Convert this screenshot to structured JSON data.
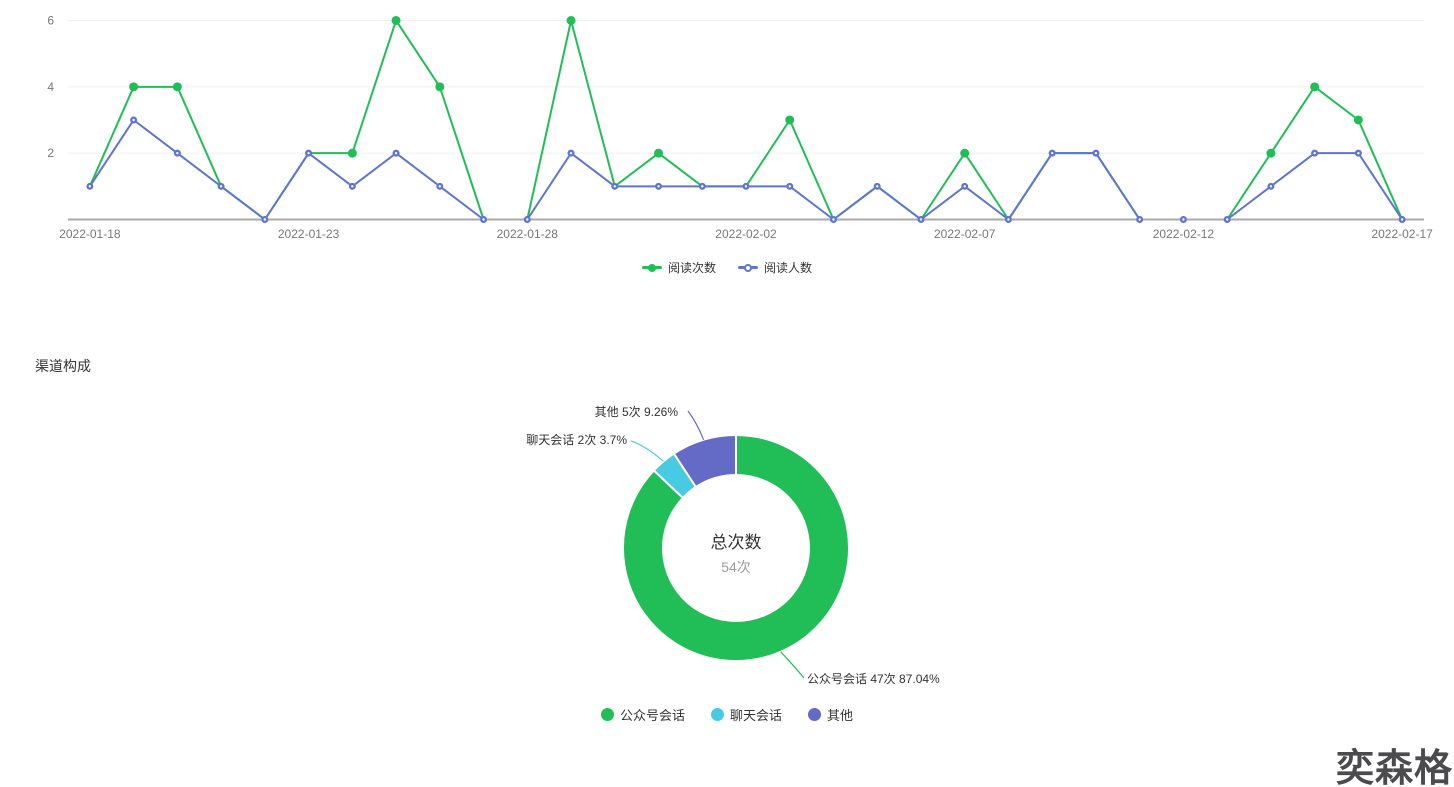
{
  "sections": {
    "channel_title": "渠道构成"
  },
  "watermark": {
    "text": "奕森格"
  },
  "chart_data": [
    {
      "type": "line",
      "title": "",
      "x": [
        "2022-01-18",
        "2022-01-19",
        "2022-01-20",
        "2022-01-21",
        "2022-01-22",
        "2022-01-23",
        "2022-01-24",
        "2022-01-25",
        "2022-01-26",
        "2022-01-27",
        "2022-01-28",
        "2022-01-29",
        "2022-01-30",
        "2022-01-31",
        "2022-02-01",
        "2022-02-02",
        "2022-02-03",
        "2022-02-04",
        "2022-02-05",
        "2022-02-06",
        "2022-02-07",
        "2022-02-08",
        "2022-02-09",
        "2022-02-10",
        "2022-02-11",
        "2022-02-12",
        "2022-02-13",
        "2022-02-14",
        "2022-02-15",
        "2022-02-16",
        "2022-02-17"
      ],
      "series": [
        {
          "name": "阅读次数",
          "color": "#21BE57",
          "values": [
            1,
            4,
            4,
            1,
            0,
            2,
            2,
            6,
            4,
            0,
            0,
            6,
            1,
            2,
            1,
            1,
            3,
            0,
            1,
            0,
            2,
            0,
            2,
            2,
            0,
            0,
            0,
            2,
            4,
            3,
            0
          ]
        },
        {
          "name": "阅读人数",
          "color": "#5F74D3",
          "values": [
            1,
            3,
            2,
            1,
            0,
            2,
            1,
            2,
            1,
            0,
            0,
            2,
            1,
            1,
            1,
            1,
            1,
            0,
            1,
            0,
            1,
            0,
            2,
            2,
            0,
            0,
            0,
            1,
            2,
            2,
            0
          ]
        }
      ],
      "ylim": [
        0,
        6
      ],
      "y_ticks": [
        2,
        4,
        6
      ],
      "x_label_indices": [
        0,
        5,
        10,
        15,
        20,
        25,
        30
      ],
      "grid": true,
      "legend_position": "bottom-center"
    },
    {
      "type": "pie",
      "donut": true,
      "title": "渠道构成",
      "center_label": {
        "title": "总次数",
        "value": "54次"
      },
      "slices": [
        {
          "name": "公众号会话",
          "value": 47,
          "unit": "次",
          "percent": "87.04%",
          "color": "#21BE57",
          "label": "公众号会话 47次 87.04%"
        },
        {
          "name": "聊天会话",
          "value": 2,
          "unit": "次",
          "percent": "3.7%",
          "color": "#48CAE2",
          "label": "聊天会话 2次 3.7%"
        },
        {
          "name": "其他",
          "value": 5,
          "unit": "次",
          "percent": "9.26%",
          "color": "#636BC7",
          "label": "其他 5次 9.26%"
        }
      ],
      "legend": [
        "公众号会话",
        "聊天会话",
        "其他"
      ],
      "legend_position": "bottom-center"
    }
  ]
}
